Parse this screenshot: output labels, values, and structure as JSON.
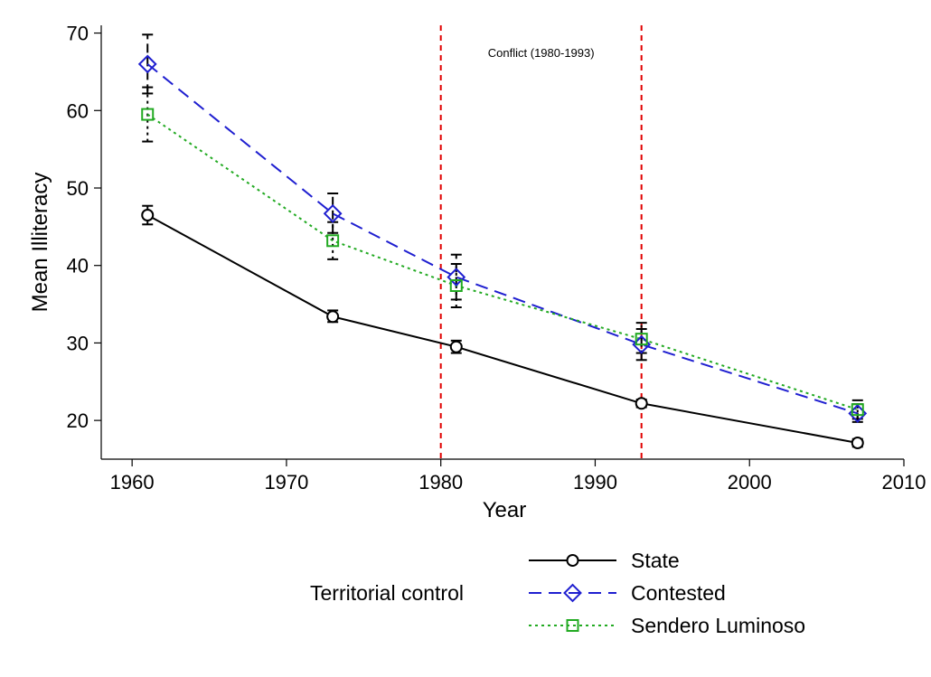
{
  "chart_data": {
    "type": "line",
    "title": "",
    "xlabel": "Year",
    "ylabel": "Mean Illiteracy",
    "xlim": [
      1958,
      2010
    ],
    "ylim": [
      15,
      71
    ],
    "xticks": [
      1960,
      1970,
      1980,
      1990,
      2000,
      2010
    ],
    "yticks": [
      20,
      30,
      40,
      50,
      60,
      70
    ],
    "grid": false,
    "x": [
      1961,
      1973,
      1981,
      1993,
      2007
    ],
    "series": [
      {
        "name": "State",
        "color": "#000000",
        "line_style": "solid",
        "marker": "circle",
        "values": [
          46.5,
          33.4,
          29.5,
          22.2,
          17.1
        ],
        "ci_low": [
          45.3,
          32.7,
          28.7,
          21.7,
          16.6
        ],
        "ci_high": [
          47.7,
          34.2,
          30.3,
          22.7,
          17.6
        ]
      },
      {
        "name": "Contested",
        "color": "#1f1fd0",
        "line_style": "dashed",
        "marker": "diamond",
        "values": [
          66.0,
          46.7,
          38.5,
          29.8,
          20.9
        ],
        "ci_low": [
          62.2,
          44.2,
          35.6,
          27.8,
          19.8
        ],
        "ci_high": [
          69.8,
          49.3,
          41.4,
          31.8,
          22.1
        ]
      },
      {
        "name": "Sendero Luminoso",
        "color": "#22aa22",
        "line_style": "dotted",
        "marker": "square",
        "values": [
          59.5,
          43.2,
          37.4,
          30.5,
          21.4
        ],
        "ci_low": [
          56.0,
          40.8,
          34.6,
          28.7,
          20.2
        ],
        "ci_high": [
          63.0,
          45.6,
          40.2,
          32.6,
          22.6
        ]
      }
    ],
    "vlines": [
      {
        "x": 1980,
        "color": "#e00000",
        "line_style": "dashed"
      },
      {
        "x": 1993,
        "color": "#e00000",
        "line_style": "dashed"
      }
    ],
    "annotations": [
      {
        "text": "Conflict (1980-1993)",
        "x": 1986.5,
        "y": 67.5
      }
    ],
    "legend": {
      "title": "Territorial control",
      "placement": "bottom",
      "entries": [
        "State",
        "Contested",
        "Sendero Luminoso"
      ]
    }
  }
}
